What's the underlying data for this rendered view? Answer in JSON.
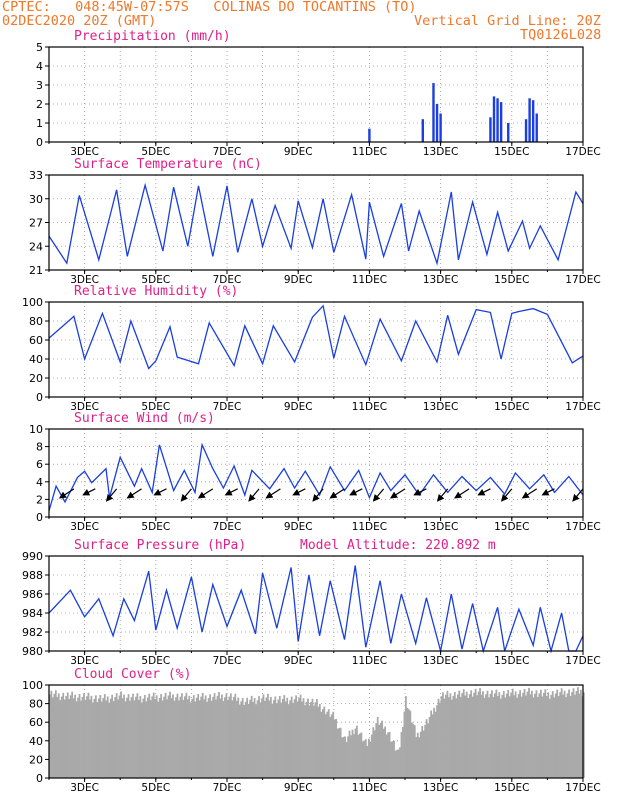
{
  "header": {
    "line1": "CPTEC:   048:45W-07:57S   COLINAS DO TOCANTINS (TO)",
    "line2_left": "02DEC2020 20Z (GMT)",
    "line2_right": "Vertical Grid Line: 20Z",
    "line3_right": "TQ0126L028"
  },
  "colors": {
    "header": "#f0782a",
    "title": "#e0208a",
    "line": "#1a3ee0",
    "cloud": "#a9a9a9"
  },
  "x_tick_labels": [
    "3DEC",
    "5DEC",
    "7DEC",
    "9DEC",
    "11DEC",
    "13DEC",
    "15DEC",
    "17DEC"
  ],
  "chart_data": [
    {
      "type": "bar",
      "title": "Precipitation (mm/h)",
      "ylim": [
        0,
        5
      ],
      "yticks": [
        "0",
        "1",
        "2",
        "3",
        "4",
        "5"
      ],
      "days": [
        11.0,
        12.5,
        12.8,
        12.9,
        13.0,
        14.4,
        14.5,
        14.6,
        14.7,
        14.9,
        15.4,
        15.5,
        15.6,
        15.7
      ],
      "values": [
        0.7,
        1.2,
        3.1,
        2.0,
        1.5,
        1.3,
        2.4,
        2.3,
        2.1,
        1.0,
        1.2,
        2.3,
        2.2,
        1.5
      ]
    },
    {
      "type": "line",
      "title": "Surface Temperature (nC)",
      "ylim": [
        21,
        35
      ],
      "yticks": [
        "21",
        "24",
        "27",
        "30",
        "33"
      ],
      "days": [
        2.0,
        2.5,
        2.85,
        3.4,
        3.9,
        4.2,
        4.7,
        5.2,
        5.5,
        5.9,
        6.2,
        6.6,
        7.0,
        7.3,
        7.7,
        8.0,
        8.35,
        8.8,
        9.0,
        9.4,
        9.7,
        10.0,
        10.5,
        10.9,
        11.0,
        11.4,
        11.9,
        12.1,
        12.4,
        12.9,
        13.3,
        13.5,
        13.9,
        14.3,
        14.6,
        14.9,
        15.3,
        15.5,
        15.8,
        16.3,
        16.8,
        17.0
      ],
      "values": [
        26,
        22,
        32,
        22.5,
        32.8,
        23,
        33.5,
        23.8,
        33.2,
        24.5,
        33.4,
        23,
        33.4,
        23.6,
        31.5,
        24.5,
        30.5,
        24.2,
        31.2,
        24.3,
        31.5,
        23.6,
        32.1,
        22.6,
        31,
        23,
        30.8,
        23.8,
        29.7,
        22,
        32.5,
        22.5,
        31,
        23.3,
        29.5,
        23.8,
        28.2,
        24.2,
        27.5,
        22.5,
        32.5,
        30.8
      ]
    },
    {
      "type": "line",
      "title": "Relative Humidity (%)",
      "ylim": [
        0,
        100
      ],
      "yticks": [
        "0",
        "20",
        "40",
        "60",
        "80",
        "100"
      ],
      "days": [
        2.0,
        2.4,
        2.7,
        3.0,
        3.5,
        4.0,
        4.3,
        4.8,
        5.0,
        5.4,
        5.6,
        6.2,
        6.5,
        7.2,
        7.5,
        8.0,
        8.3,
        8.9,
        9.4,
        9.7,
        10.0,
        10.3,
        10.9,
        11.3,
        11.9,
        12.3,
        12.9,
        13.2,
        13.5,
        14.0,
        14.4,
        14.7,
        15.0,
        15.2,
        15.6,
        16.0,
        16.7,
        17.0
      ],
      "values": [
        62,
        75,
        85,
        40,
        88,
        37,
        80,
        30,
        38,
        74,
        42,
        35,
        78,
        33,
        75,
        35,
        75,
        37,
        84,
        96,
        41,
        85,
        34,
        82,
        38,
        80,
        37,
        86,
        45,
        92,
        89,
        40,
        88,
        90,
        93,
        87,
        36,
        43
      ]
    },
    {
      "type": "line",
      "title": "Surface Wind (m/s)",
      "ylim": [
        0,
        10
      ],
      "yticks": [
        "0",
        "2",
        "4",
        "6",
        "8",
        "10"
      ],
      "days": [
        2.0,
        2.2,
        2.45,
        2.8,
        3.0,
        3.2,
        3.6,
        3.7,
        4.0,
        4.4,
        4.6,
        4.9,
        5.1,
        5.5,
        5.8,
        6.1,
        6.3,
        6.6,
        6.9,
        7.2,
        7.5,
        7.7,
        8.2,
        8.6,
        8.9,
        9.2,
        9.6,
        9.9,
        10.3,
        10.7,
        11.0,
        11.3,
        11.6,
        12.0,
        12.4,
        12.8,
        13.2,
        13.6,
        14.0,
        14.4,
        14.8,
        15.1,
        15.5,
        15.9,
        16.2,
        16.6,
        17.0
      ],
      "values": [
        0.7,
        3.5,
        1.7,
        4.5,
        5.2,
        3.9,
        5.5,
        2.2,
        6.8,
        3.5,
        5.5,
        2.8,
        8.2,
        3,
        5.3,
        2.8,
        8.2,
        5.5,
        3.3,
        5.8,
        2.5,
        5.3,
        3.2,
        5.5,
        3.3,
        5.2,
        2.5,
        5.7,
        3.0,
        5.3,
        2.2,
        5.0,
        3.0,
        4.8,
        2.5,
        4.8,
        2.8,
        4.6,
        3.0,
        4.5,
        2.6,
        5.0,
        3.2,
        4.8,
        2.8,
        4.6,
        2.5
      ],
      "arrow_days": [
        2.7,
        3.3,
        3.9,
        4.6,
        5.3,
        6.0,
        6.6,
        7.3,
        7.9,
        8.5,
        9.2,
        9.7,
        10.3,
        10.8,
        11.4,
        12.0,
        12.6,
        13.2,
        13.8,
        14.4,
        15.0,
        15.7,
        16.2,
        17.0
      ]
    },
    {
      "type": "line",
      "title": "Surface Pressure (hPa)",
      "annotation": "Model Altitude: 220.892 m",
      "ylim": [
        980,
        990
      ],
      "yticks": [
        "980",
        "982",
        "984",
        "986",
        "988",
        "990"
      ],
      "days": [
        2.0,
        2.6,
        3.0,
        3.4,
        3.8,
        4.1,
        4.4,
        4.8,
        5.0,
        5.3,
        5.6,
        6.0,
        6.3,
        6.6,
        7.0,
        7.4,
        7.8,
        8.0,
        8.4,
        8.8,
        9.0,
        9.3,
        9.6,
        9.9,
        10.3,
        10.6,
        10.9,
        11.3,
        11.6,
        11.9,
        12.3,
        12.6,
        13.0,
        13.3,
        13.6,
        13.9,
        14.2,
        14.6,
        14.8,
        15.2,
        15.6,
        15.8,
        16.1,
        16.4,
        16.6,
        16.8,
        17.0
      ],
      "values": [
        984.0,
        986.4,
        983.6,
        985.5,
        981.6,
        985.5,
        983.2,
        988.4,
        982.2,
        986.4,
        982.4,
        987.8,
        982.0,
        987.0,
        982.6,
        986.4,
        981.8,
        988.2,
        982.4,
        988.8,
        981.0,
        988.0,
        981.6,
        987.4,
        981.2,
        989.0,
        980.4,
        987.4,
        980.8,
        986.0,
        980.8,
        985.6,
        980.0,
        986.0,
        980.2,
        985.0,
        980.0,
        984.6,
        980.0,
        984.4,
        980.6,
        984.6,
        980.0,
        984.0,
        980.0,
        980.0,
        981.6
      ]
    },
    {
      "type": "bar",
      "title": "Cloud Cover (%)",
      "ylim": [
        0,
        100
      ],
      "yticks": [
        "0",
        "20",
        "40",
        "60",
        "80",
        "100"
      ],
      "days": [
        2.0,
        2.5,
        3.0,
        3.5,
        4.0,
        4.5,
        5.0,
        5.5,
        6.0,
        6.5,
        7.0,
        7.5,
        8.0,
        8.5,
        9.0,
        9.5,
        10.0,
        10.3,
        10.6,
        10.9,
        11.2,
        11.5,
        11.8,
        12.0,
        12.3,
        12.6,
        13.0,
        13.5,
        14.0,
        14.5,
        15.0,
        15.5,
        16.0,
        16.5,
        17.0
      ],
      "values": [
        90,
        88,
        87,
        85,
        88,
        86,
        87,
        88,
        86,
        87,
        88,
        82,
        86,
        84,
        85,
        80,
        65,
        40,
        55,
        35,
        62,
        50,
        25,
        85,
        45,
        60,
        88,
        90,
        92,
        90,
        91,
        92,
        90,
        92,
        93
      ]
    }
  ]
}
